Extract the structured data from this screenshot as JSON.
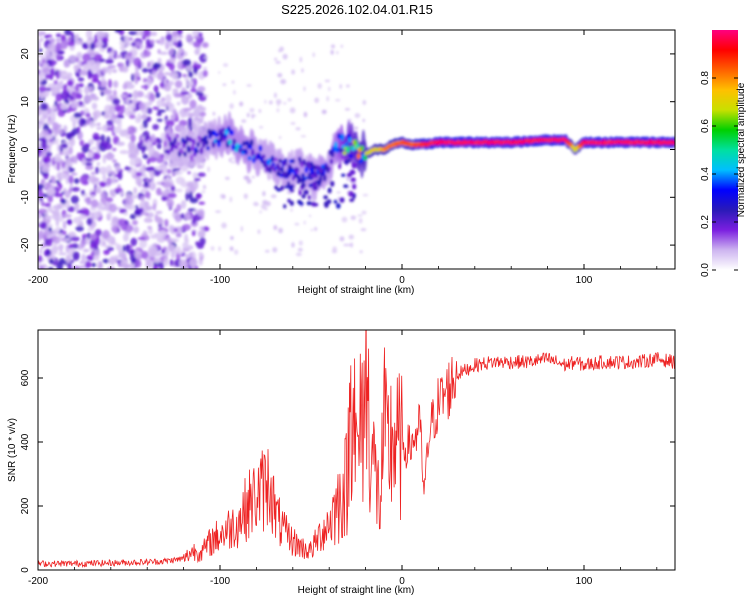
{
  "title": "S225.2026.102.04.01.R15",
  "chart_data": [
    {
      "type": "heatmap",
      "xlabel": "Height of straight line (km)",
      "ylabel": "Frequency (Hz)",
      "xlim": [
        -200,
        150
      ],
      "ylim": [
        -25,
        25
      ],
      "xticks": [
        -200,
        -100,
        0,
        100
      ],
      "xtick_labels": [
        "-200",
        "-100",
        "0",
        "100"
      ],
      "yticks": [
        -20,
        -10,
        0,
        10,
        20
      ],
      "ytick_labels": [
        "-20",
        "-10",
        "0",
        "10",
        "20"
      ],
      "colorbar": {
        "label": "Normalized spectral amplitude",
        "range": [
          0.0,
          1.0
        ],
        "ticks": [
          0.0,
          0.2,
          0.4,
          0.6,
          0.8
        ],
        "tick_labels": [
          "0.0",
          "0.2",
          "0.4",
          "0.6",
          "0.8"
        ],
        "colors": [
          "#ffffff",
          "#cdb4f0",
          "#7b1fe0",
          "#2a1ab8",
          "#0000ff",
          "#00bfff",
          "#00e0a0",
          "#00d000",
          "#c8e000",
          "#ffc000",
          "#ff6000",
          "#ff0000",
          "#ff0080"
        ]
      },
      "ridge": {
        "x": [
          -125,
          -115,
          -105,
          -95,
          -85,
          -75,
          -65,
          -55,
          -45,
          -40,
          -35,
          -30,
          -25,
          -20,
          -15,
          -10,
          -5,
          0,
          5,
          10,
          20,
          40,
          60,
          80,
          90,
          95,
          100,
          120,
          150
        ],
        "freq": [
          1,
          0,
          2,
          3,
          0,
          -2,
          -4,
          -4,
          -6,
          -3,
          1,
          1,
          0,
          -1,
          0,
          0,
          1,
          1.5,
          1,
          1,
          1.5,
          1.5,
          1.5,
          2,
          2,
          0,
          1.5,
          1.5,
          1.5
        ],
        "amplitude": [
          0.2,
          0.25,
          0.3,
          0.35,
          0.35,
          0.3,
          0.3,
          0.3,
          0.35,
          0.3,
          0.4,
          0.6,
          0.65,
          0.7,
          0.75,
          0.8,
          0.8,
          0.85,
          0.85,
          0.9,
          0.95,
          0.95,
          0.95,
          0.95,
          0.95,
          0.7,
          0.95,
          0.95,
          0.95
        ]
      }
    },
    {
      "type": "line",
      "xlabel": "Height of straight line (km)",
      "ylabel": "SNR (10 * v/v)",
      "xlim": [
        -200,
        150
      ],
      "ylim": [
        0,
        750
      ],
      "xticks": [
        -200,
        -100,
        0,
        100
      ],
      "xtick_labels": [
        "-200",
        "-100",
        "0",
        "100"
      ],
      "yticks": [
        0,
        200,
        400,
        600
      ],
      "ytick_labels": [
        "0",
        "200",
        "400",
        "600"
      ],
      "color": "#ee2222",
      "series": [
        {
          "name": "SNR",
          "x": [
            -200,
            -180,
            -160,
            -140,
            -130,
            -120,
            -115,
            -110,
            -105,
            -100,
            -95,
            -90,
            -85,
            -80,
            -75,
            -72,
            -70,
            -65,
            -60,
            -55,
            -50,
            -45,
            -40,
            -35,
            -30,
            -27,
            -25,
            -22,
            -20,
            -17,
            -15,
            -12,
            -10,
            -8,
            -5,
            -2,
            0,
            5,
            10,
            12,
            15,
            20,
            25,
            30,
            40,
            50,
            60,
            70,
            80,
            90,
            95,
            100,
            110,
            120,
            130,
            140,
            150
          ],
          "y": [
            20,
            20,
            22,
            25,
            28,
            35,
            60,
            55,
            90,
            110,
            130,
            150,
            200,
            230,
            260,
            280,
            180,
            120,
            90,
            70,
            60,
            110,
            150,
            210,
            280,
            700,
            320,
            470,
            600,
            420,
            300,
            200,
            440,
            360,
            420,
            380,
            380,
            390,
            450,
            230,
            430,
            520,
            560,
            610,
            640,
            650,
            650,
            650,
            660,
            640,
            650,
            640,
            650,
            650,
            650,
            660,
            650
          ]
        }
      ]
    }
  ]
}
